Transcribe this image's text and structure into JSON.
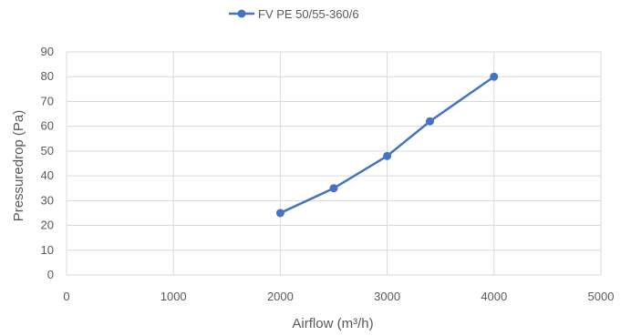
{
  "chart_data": {
    "type": "line",
    "title": "",
    "xlabel": "Airflow (m³/h)",
    "ylabel": "Pressuredrop (Pa)",
    "xlim": [
      0,
      5000
    ],
    "ylim": [
      0,
      90
    ],
    "xticks": [
      0,
      1000,
      2000,
      3000,
      4000,
      5000
    ],
    "yticks": [
      0,
      10,
      20,
      30,
      40,
      50,
      60,
      70,
      80,
      90
    ],
    "grid": true,
    "legend_position": "top",
    "series": [
      {
        "name": "FV PE 50/55-360/6",
        "color": "#4472c4",
        "x": [
          2000,
          2500,
          3000,
          3400,
          4000
        ],
        "y": [
          25,
          35,
          48,
          62,
          80
        ]
      }
    ]
  }
}
